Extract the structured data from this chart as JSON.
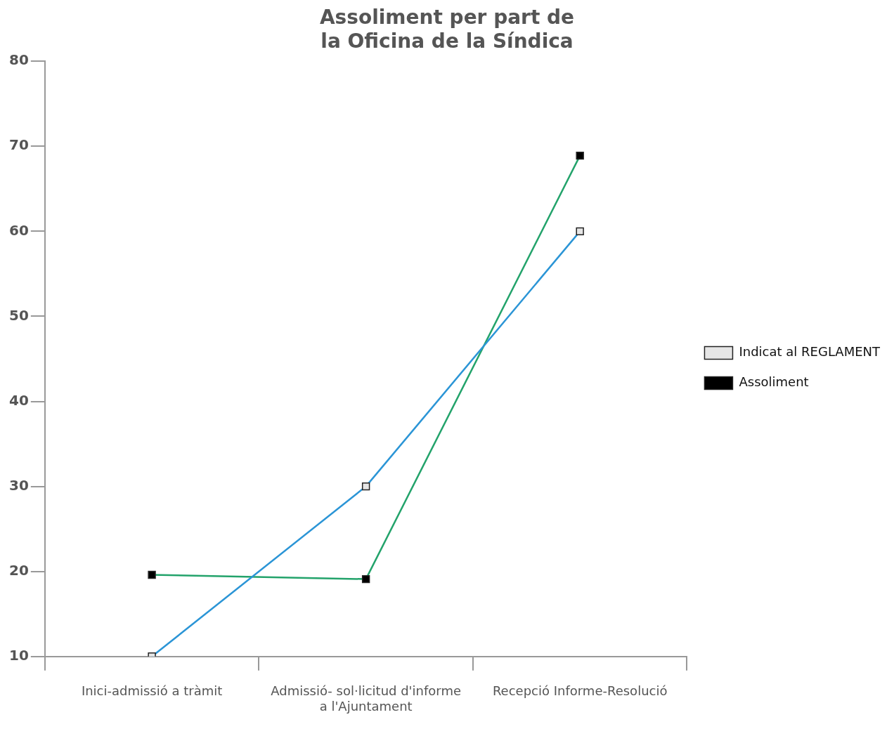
{
  "chart_data": {
    "type": "line",
    "title": "Assoliment per part de la Oficina de la Síndica",
    "categories": [
      "Inici-admissió a tràmit",
      "Admissió- sol·licitud d'informe a l'Ajuntament",
      "Recepció Informe-Resolució"
    ],
    "series": [
      {
        "name": "Indicat al REGLAMENT",
        "color": "#2b95d6",
        "values": [
          10,
          30,
          60
        ]
      },
      {
        "name": "Assoliment",
        "color": "#23a36b",
        "values": [
          19.6,
          19.1,
          68.9
        ]
      }
    ],
    "ylim": [
      10,
      80
    ],
    "yticks": [
      10,
      20,
      30,
      40,
      50,
      60,
      70,
      80
    ],
    "grid": false,
    "legend": "right",
    "marker": "square",
    "line_style": "solid"
  }
}
